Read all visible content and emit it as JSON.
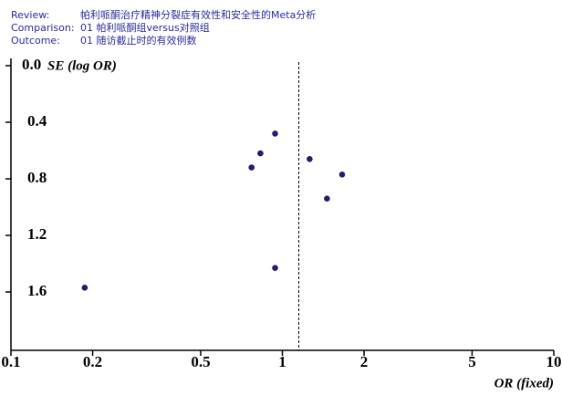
{
  "chart_data": {
    "type": "scatter",
    "header": [
      {
        "label": "Review:",
        "text": "帕利哌酮治疗精神分裂症有效性和安全性的Meta分析"
      },
      {
        "label": "Comparison:",
        "text": "01 帕利哌酮组versus对照组"
      },
      {
        "label": "Outcome:",
        "text": "01 随访截止时的有效例数"
      }
    ],
    "y_label": "SE (log OR)",
    "x_label": "OR (fixed)",
    "x": [
      0.94,
      0.83,
      0.77,
      1.26,
      1.66,
      1.46,
      0.94,
      0.187
    ],
    "values": [
      0.48,
      0.62,
      0.72,
      0.66,
      0.77,
      0.94,
      1.43,
      1.57
    ],
    "color": "#2a1a6e",
    "reference_line": 1.15,
    "xlog": true,
    "xlim": [
      0.1,
      10
    ],
    "xticks": [
      0.1,
      0.2,
      0.5,
      1,
      2,
      5,
      10
    ],
    "ylim": [
      0,
      2
    ],
    "yinverted": true,
    "yticks": [
      {
        "value": 0,
        "label": "0.0"
      },
      0.4,
      0.8,
      1.2,
      1.6
    ]
  }
}
